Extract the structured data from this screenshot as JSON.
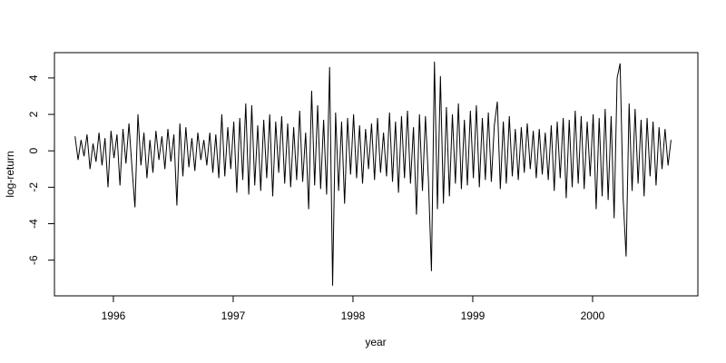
{
  "chart_data": {
    "type": "line",
    "xlabel": "year",
    "ylabel": "log-return",
    "xlim": [
      1995.508,
      2000.879
    ],
    "xticks": [
      1996,
      1997,
      1998,
      1999,
      2000
    ],
    "ylim": [
      -7.96,
      5.39
    ],
    "yticks": [
      -6,
      -4,
      -2,
      0,
      2,
      4
    ],
    "series": [
      {
        "color": "#000000",
        "x": [
          1995.68,
          1995.705,
          1995.73,
          1995.755,
          1995.78,
          1995.805,
          1995.83,
          1995.855,
          1995.88,
          1995.905,
          1995.93,
          1995.955,
          1995.98,
          1996.005,
          1996.03,
          1996.055,
          1996.08,
          1996.105,
          1996.13,
          1996.155,
          1996.18,
          1996.205,
          1996.23,
          1996.255,
          1996.28,
          1996.305,
          1996.33,
          1996.355,
          1996.38,
          1996.405,
          1996.43,
          1996.455,
          1996.48,
          1996.505,
          1996.53,
          1996.555,
          1996.58,
          1996.605,
          1996.63,
          1996.655,
          1996.68,
          1996.705,
          1996.73,
          1996.755,
          1996.78,
          1996.805,
          1996.83,
          1996.855,
          1996.88,
          1996.905,
          1996.93,
          1996.955,
          1996.98,
          1997.005,
          1997.03,
          1997.055,
          1997.08,
          1997.105,
          1997.13,
          1997.155,
          1997.18,
          1997.205,
          1997.23,
          1997.255,
          1997.28,
          1997.305,
          1997.33,
          1997.355,
          1997.38,
          1997.405,
          1997.43,
          1997.455,
          1997.48,
          1997.505,
          1997.53,
          1997.555,
          1997.58,
          1997.605,
          1997.63,
          1997.655,
          1997.68,
          1997.705,
          1997.73,
          1997.755,
          1997.78,
          1997.805,
          1997.83,
          1997.855,
          1997.88,
          1997.905,
          1997.93,
          1997.955,
          1997.98,
          1998.005,
          1998.03,
          1998.055,
          1998.08,
          1998.105,
          1998.13,
          1998.155,
          1998.18,
          1998.205,
          1998.23,
          1998.255,
          1998.28,
          1998.305,
          1998.33,
          1998.355,
          1998.38,
          1998.405,
          1998.43,
          1998.455,
          1998.48,
          1998.505,
          1998.53,
          1998.555,
          1998.58,
          1998.605,
          1998.63,
          1998.655,
          1998.68,
          1998.705,
          1998.73,
          1998.755,
          1998.78,
          1998.805,
          1998.83,
          1998.855,
          1998.88,
          1998.905,
          1998.93,
          1998.955,
          1998.98,
          1999.005,
          1999.03,
          1999.055,
          1999.08,
          1999.105,
          1999.13,
          1999.155,
          1999.18,
          1999.205,
          1999.23,
          1999.255,
          1999.28,
          1999.305,
          1999.33,
          1999.355,
          1999.38,
          1999.405,
          1999.43,
          1999.455,
          1999.48,
          1999.505,
          1999.53,
          1999.555,
          1999.58,
          1999.605,
          1999.63,
          1999.655,
          1999.68,
          1999.705,
          1999.73,
          1999.755,
          1999.78,
          1999.805,
          1999.83,
          1999.855,
          1999.88,
          1999.905,
          1999.93,
          1999.955,
          1999.98,
          2000.005,
          2000.03,
          2000.055,
          2000.08,
          2000.105,
          2000.13,
          2000.155,
          2000.18,
          2000.205,
          2000.23,
          2000.255,
          2000.28,
          2000.305,
          2000.33,
          2000.355,
          2000.38,
          2000.405,
          2000.43,
          2000.455,
          2000.48,
          2000.505,
          2000.53,
          2000.555,
          2000.58,
          2000.605,
          2000.63,
          2000.655
        ],
        "values": [
          0.8,
          -0.5,
          0.6,
          -0.3,
          0.9,
          -1.0,
          0.4,
          -0.6,
          1.0,
          -0.8,
          0.7,
          -2.0,
          1.1,
          -0.4,
          0.9,
          -1.9,
          1.2,
          -0.7,
          1.5,
          -0.9,
          -3.1,
          2.0,
          -0.8,
          1.0,
          -1.5,
          0.6,
          -1.2,
          1.1,
          -0.5,
          0.8,
          -1.0,
          1.2,
          -0.6,
          0.9,
          -3.0,
          1.5,
          -1.4,
          1.3,
          -0.9,
          0.7,
          -1.1,
          1.0,
          -0.5,
          0.6,
          -0.8,
          1.0,
          -1.2,
          0.9,
          -1.5,
          2.0,
          -1.4,
          1.3,
          -1.0,
          1.6,
          -2.3,
          1.8,
          -1.6,
          2.6,
          -2.4,
          2.5,
          -1.9,
          1.4,
          -2.2,
          1.7,
          -1.5,
          2.0,
          -2.5,
          1.6,
          -1.2,
          1.9,
          -1.8,
          1.5,
          -2.0,
          1.3,
          -1.6,
          2.2,
          -1.7,
          1.0,
          -3.2,
          3.3,
          -1.9,
          2.5,
          -2.1,
          1.7,
          -2.4,
          4.6,
          -7.4,
          2.1,
          -2.2,
          1.6,
          -2.9,
          1.8,
          -1.3,
          2.0,
          -1.5,
          1.4,
          -1.8,
          1.2,
          -1.0,
          1.5,
          -1.6,
          1.8,
          -1.2,
          1.0,
          -1.4,
          2.1,
          -1.7,
          1.6,
          -2.3,
          1.9,
          -1.5,
          2.2,
          -1.8,
          1.3,
          -3.5,
          2.0,
          -2.2,
          1.9,
          -1.6,
          -6.6,
          4.9,
          -3.2,
          4.1,
          -2.9,
          2.4,
          -2.5,
          2.0,
          -1.8,
          2.6,
          -2.1,
          1.7,
          -1.9,
          2.2,
          -1.5,
          2.5,
          -2.0,
          1.8,
          -1.6,
          2.1,
          -1.7,
          1.4,
          2.7,
          -2.1,
          1.6,
          -1.8,
          1.9,
          -1.4,
          1.2,
          -1.6,
          1.3,
          -1.2,
          1.5,
          -1.0,
          1.1,
          -1.5,
          1.2,
          -1.3,
          1.0,
          -1.6,
          1.4,
          -2.2,
          1.6,
          -1.5,
          1.8,
          -2.6,
          1.7,
          -2.0,
          2.2,
          -1.8,
          1.9,
          -2.1,
          1.6,
          -1.4,
          2.0,
          -3.2,
          1.8,
          -2.5,
          2.3,
          -2.7,
          1.9,
          -3.7,
          4.0,
          4.8,
          -2.6,
          -5.8,
          2.6,
          -2.2,
          2.3,
          -1.8,
          1.7,
          -2.5,
          1.8,
          -1.4,
          1.6,
          -1.9,
          1.3,
          -1.0,
          1.2,
          -0.8,
          0.6
        ]
      }
    ]
  }
}
